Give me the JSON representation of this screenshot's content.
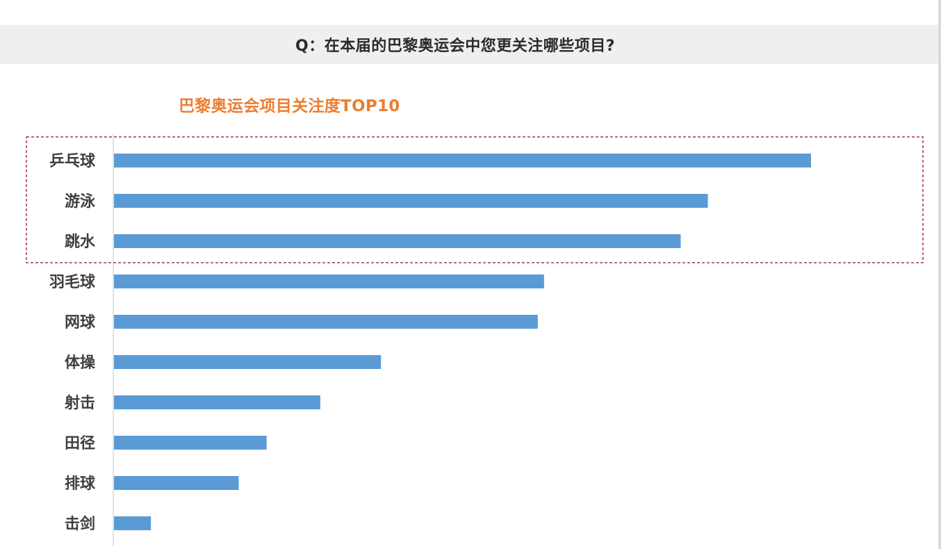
{
  "question": "Q：在本届的巴黎奥运会中您更关注哪些项目?",
  "colors": {
    "bar": "#5b9bd5",
    "title": "#ed7d31",
    "highlight_border": "#a33a3a",
    "axis": "#d9d9d9"
  },
  "chart_data": {
    "type": "bar",
    "orientation": "horizontal",
    "title": "巴黎奥运会项目关注度TOP10",
    "categories": [
      "乒乓球",
      "游泳",
      "跳水",
      "羽毛球",
      "网球",
      "体操",
      "射击",
      "田径",
      "排球",
      "击剑"
    ],
    "values": [
      100,
      85.2,
      81.3,
      61.7,
      60.8,
      38.3,
      29.6,
      21.9,
      17.9,
      5.3
    ],
    "xlim": [
      0,
      100
    ],
    "value_labels": false,
    "grid": false,
    "legend": "none",
    "highlighted_categories": [
      "乒乓球",
      "游泳",
      "跳水"
    ]
  }
}
